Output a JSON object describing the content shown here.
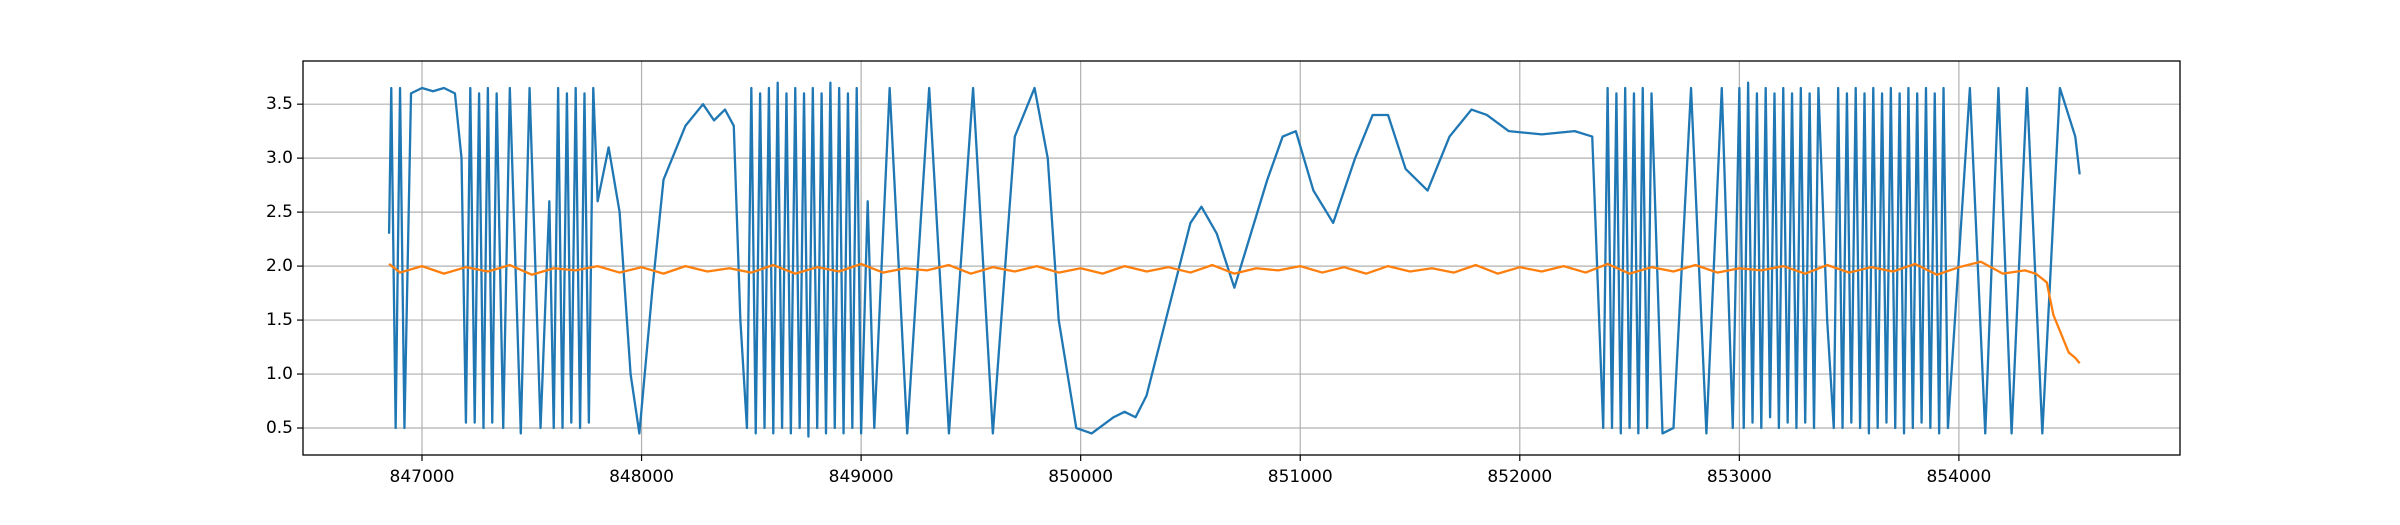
{
  "chart_data": {
    "type": "line",
    "grid": true,
    "xlim": [
      846458,
      855007
    ],
    "ylim": [
      0.25,
      3.9
    ],
    "xticks": [
      847000,
      848000,
      849000,
      850000,
      851000,
      852000,
      853000,
      854000
    ],
    "yticks": [
      0.5,
      {
        "value": 1,
        "label": "1.0"
      },
      1.5,
      {
        "value": 2,
        "label": "2.0"
      },
      2.5,
      {
        "value": 3,
        "label": "3.0"
      },
      3.5
    ],
    "series": [
      {
        "color": "#1f77b4",
        "x": [
          846850,
          846860,
          846880,
          846900,
          846920,
          846950,
          847000,
          847050,
          847100,
          847150,
          847180,
          847200,
          847220,
          847240,
          847260,
          847280,
          847300,
          847320,
          847340,
          847370,
          847400,
          847450,
          847490,
          847540,
          847580,
          847600,
          847620,
          847640,
          847660,
          847680,
          847700,
          847720,
          847740,
          847760,
          847780,
          847800,
          847850,
          847900,
          847950,
          847990,
          848050,
          848100,
          848200,
          848280,
          848330,
          848380,
          848420,
          848450,
          848480,
          848500,
          848520,
          848540,
          848560,
          848580,
          848600,
          848620,
          848640,
          848660,
          848680,
          848700,
          848720,
          848740,
          848760,
          848780,
          848800,
          848820,
          848840,
          848860,
          848880,
          848900,
          848920,
          848940,
          848960,
          848980,
          849000,
          849030,
          849060,
          849130,
          849210,
          849310,
          849400,
          849510,
          849600,
          849700,
          849790,
          849850,
          849900,
          849980,
          850050,
          850150,
          850200,
          850250,
          850300,
          850400,
          850500,
          850550,
          850620,
          850700,
          850760,
          850850,
          850920,
          850980,
          851060,
          851150,
          851250,
          851330,
          851400,
          851480,
          851580,
          851680,
          851780,
          851850,
          851950,
          852100,
          852250,
          852330,
          852380,
          852400,
          852420,
          852440,
          852460,
          852480,
          852500,
          852520,
          852540,
          852560,
          852580,
          852600,
          852650,
          852700,
          852780,
          852850,
          852920,
          852970,
          853000,
          853020,
          853040,
          853060,
          853080,
          853100,
          853120,
          853140,
          853160,
          853180,
          853200,
          853220,
          853240,
          853260,
          853280,
          853300,
          853320,
          853340,
          853360,
          853400,
          853430,
          853450,
          853470,
          853490,
          853510,
          853530,
          853550,
          853570,
          853590,
          853610,
          853630,
          853650,
          853670,
          853690,
          853710,
          853730,
          853750,
          853770,
          853790,
          853810,
          853830,
          853850,
          853870,
          853890,
          853910,
          853930,
          853950,
          854050,
          854120,
          854180,
          854240,
          854310,
          854380,
          854460,
          854530,
          854550
        ],
        "values": [
          2.3,
          3.65,
          0.5,
          3.65,
          0.5,
          3.6,
          3.65,
          3.62,
          3.65,
          3.6,
          3.0,
          0.55,
          3.65,
          0.55,
          3.6,
          0.5,
          3.65,
          0.55,
          3.6,
          0.5,
          3.65,
          0.45,
          3.65,
          0.5,
          2.6,
          0.5,
          3.65,
          0.5,
          3.6,
          0.55,
          3.65,
          0.5,
          3.6,
          0.55,
          3.65,
          2.6,
          3.1,
          2.5,
          1.0,
          0.45,
          1.8,
          2.8,
          3.3,
          3.5,
          3.35,
          3.45,
          3.3,
          1.5,
          0.5,
          3.65,
          0.45,
          3.6,
          0.5,
          3.65,
          0.45,
          3.7,
          0.5,
          3.6,
          0.45,
          3.65,
          0.5,
          3.6,
          0.42,
          3.65,
          0.5,
          3.6,
          0.45,
          3.7,
          0.5,
          3.65,
          0.45,
          3.6,
          0.5,
          3.65,
          0.45,
          2.6,
          0.5,
          3.65,
          0.45,
          3.65,
          0.45,
          3.65,
          0.45,
          3.2,
          3.65,
          3.0,
          1.5,
          0.5,
          0.45,
          0.6,
          0.65,
          0.6,
          0.8,
          1.6,
          2.4,
          2.55,
          2.3,
          1.8,
          2.2,
          2.8,
          3.2,
          3.25,
          2.7,
          2.4,
          3.0,
          3.4,
          3.4,
          2.9,
          2.7,
          3.2,
          3.45,
          3.4,
          3.25,
          3.22,
          3.25,
          3.2,
          0.5,
          3.65,
          0.5,
          3.6,
          0.45,
          3.65,
          0.5,
          3.6,
          0.45,
          3.65,
          0.5,
          3.6,
          0.45,
          0.5,
          3.65,
          0.45,
          3.65,
          0.5,
          3.65,
          0.5,
          3.7,
          0.55,
          3.6,
          0.5,
          3.65,
          0.6,
          3.6,
          0.5,
          3.65,
          0.55,
          3.6,
          0.5,
          3.65,
          0.55,
          3.6,
          0.5,
          3.65,
          1.5,
          0.5,
          3.65,
          0.5,
          3.6,
          0.55,
          3.65,
          0.5,
          3.6,
          0.45,
          3.65,
          0.5,
          3.6,
          0.55,
          3.65,
          0.5,
          3.6,
          0.45,
          3.65,
          0.5,
          3.6,
          0.55,
          3.65,
          0.5,
          3.6,
          0.45,
          3.65,
          0.5,
          3.65,
          0.45,
          3.65,
          0.45,
          3.65,
          0.45,
          3.65,
          3.2,
          2.85
        ]
      },
      {
        "color": "#ff7f0e",
        "x": [
          846850,
          846900,
          847000,
          847100,
          847200,
          847300,
          847400,
          847500,
          847600,
          847700,
          847800,
          847900,
          848000,
          848100,
          848200,
          848300,
          848400,
          848500,
          848600,
          848700,
          848800,
          848900,
          849000,
          849100,
          849200,
          849300,
          849400,
          849500,
          849600,
          849700,
          849800,
          849900,
          850000,
          850100,
          850200,
          850300,
          850400,
          850500,
          850600,
          850700,
          850800,
          850900,
          851000,
          851100,
          851200,
          851300,
          851400,
          851500,
          851600,
          851700,
          851800,
          851900,
          852000,
          852100,
          852200,
          852300,
          852400,
          852500,
          852600,
          852700,
          852800,
          852900,
          853000,
          853100,
          853200,
          853300,
          853400,
          853500,
          853600,
          853700,
          853800,
          853900,
          854000,
          854100,
          854200,
          854300,
          854350,
          854400,
          854430,
          854470,
          854500,
          854530,
          854550
        ],
        "values": [
          2.02,
          1.94,
          2.0,
          1.93,
          1.99,
          1.95,
          2.01,
          1.92,
          1.98,
          1.96,
          2.0,
          1.94,
          1.99,
          1.93,
          2.0,
          1.95,
          1.98,
          1.94,
          2.01,
          1.93,
          1.99,
          1.95,
          2.02,
          1.94,
          1.98,
          1.96,
          2.01,
          1.93,
          1.99,
          1.95,
          2.0,
          1.94,
          1.98,
          1.93,
          2.0,
          1.95,
          1.99,
          1.94,
          2.01,
          1.93,
          1.98,
          1.96,
          2.0,
          1.94,
          1.99,
          1.93,
          2.0,
          1.95,
          1.98,
          1.94,
          2.01,
          1.93,
          1.99,
          1.95,
          2.0,
          1.94,
          2.02,
          1.93,
          1.99,
          1.95,
          2.01,
          1.94,
          1.98,
          1.96,
          2.0,
          1.93,
          2.01,
          1.94,
          1.99,
          1.95,
          2.02,
          1.92,
          1.99,
          2.04,
          1.93,
          1.96,
          1.93,
          1.85,
          1.55,
          1.35,
          1.2,
          1.15,
          1.1
        ]
      }
    ]
  }
}
